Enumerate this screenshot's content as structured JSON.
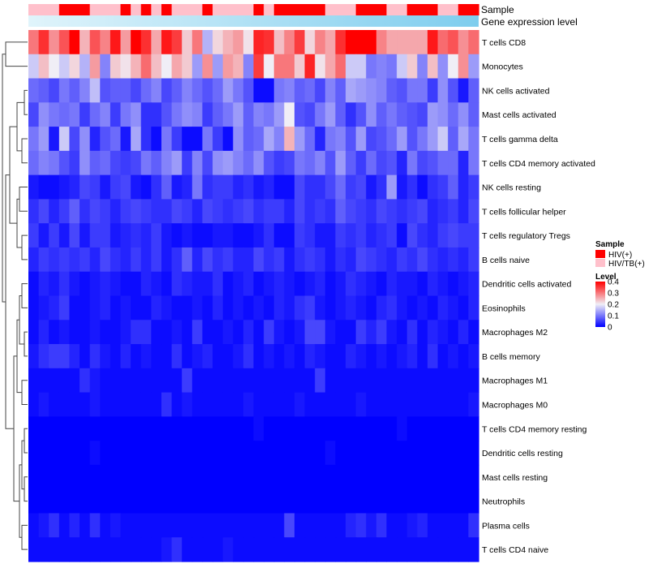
{
  "chart_data": {
    "type": "heatmap",
    "title": "",
    "colors": {
      "low": "#0000ff",
      "mid": "#f0eef6",
      "high": "#ff0000",
      "sample_hiv": "#ff0000",
      "sample_hivtb": "#ffc0cb",
      "expr_low": "#e0f4fb",
      "expr_high": "#7ecdee"
    },
    "annotations": {
      "sample_label": "Sample",
      "expression_label": "Gene expression level",
      "sample_groups": [
        "HIV/TB(+)",
        "HIV/TB(+)",
        "HIV/TB(+)",
        "HIV(+)",
        "HIV(+)",
        "HIV(+)",
        "HIV/TB(+)",
        "HIV/TB(+)",
        "HIV/TB(+)",
        "HIV(+)",
        "HIV/TB(+)",
        "HIV(+)",
        "HIV/TB(+)",
        "HIV(+)",
        "HIV/TB(+)",
        "HIV/TB(+)",
        "HIV/TB(+)",
        "HIV(+)",
        "HIV/TB(+)",
        "HIV/TB(+)",
        "HIV/TB(+)",
        "HIV/TB(+)",
        "HIV(+)",
        "HIV/TB(+)",
        "HIV(+)",
        "HIV(+)",
        "HIV(+)",
        "HIV(+)",
        "HIV(+)",
        "HIV/TB(+)",
        "HIV/TB(+)",
        "HIV/TB(+)",
        "HIV(+)",
        "HIV(+)",
        "HIV(+)",
        "HIV/TB(+)",
        "HIV/TB(+)",
        "HIV(+)",
        "HIV(+)",
        "HIV(+)",
        "HIV/TB(+)",
        "HIV/TB(+)",
        "HIV(+)",
        "HIV(+)"
      ]
    },
    "rows": [
      "T cells CD8",
      "Monocytes",
      "NK cells activated",
      "Mast cells activated",
      "T cells gamma delta",
      "T cells CD4 memory activated",
      "NK cells resting",
      "T cells follicular helper",
      "T cells regulatory  Tregs",
      "B cells naive",
      "Dendritic cells activated",
      "Eosinophils",
      "Macrophages M2",
      "B cells memory",
      "Macrophages M1",
      "Macrophages M0",
      "T cells CD4 memory resting",
      "Dendritic cells resting",
      "Mast cells resting",
      "Neutrophils",
      "Plasma cells",
      "T cells CD4 naive"
    ],
    "values": [
      [
        0.3,
        0.36,
        0.28,
        0.33,
        0.4,
        0.25,
        0.33,
        0.29,
        0.38,
        0.27,
        0.4,
        0.36,
        0.26,
        0.38,
        0.35,
        0.23,
        0.3,
        0.15,
        0.22,
        0.25,
        0.27,
        0.21,
        0.37,
        0.36,
        0.24,
        0.29,
        0.35,
        0.22,
        0.29,
        0.26,
        0.36,
        0.4,
        0.4,
        0.4,
        0.29,
        0.26,
        0.26,
        0.26,
        0.26,
        0.38,
        0.31,
        0.33,
        0.28,
        0.31
      ],
      [
        0.17,
        0.24,
        0.2,
        0.17,
        0.22,
        0.15,
        0.27,
        0.11,
        0.23,
        0.21,
        0.25,
        0.31,
        0.24,
        0.2,
        0.26,
        0.23,
        0.13,
        0.28,
        0.13,
        0.27,
        0.25,
        0.11,
        0.35,
        0.2,
        0.3,
        0.3,
        0.23,
        0.37,
        0.21,
        0.26,
        0.31,
        0.17,
        0.17,
        0.1,
        0.11,
        0.1,
        0.17,
        0.23,
        0.11,
        0.24,
        0.12,
        0.2,
        0.28,
        0.13
      ],
      [
        0.09,
        0.08,
        0.06,
        0.1,
        0.08,
        0.11,
        0.16,
        0.07,
        0.08,
        0.08,
        0.06,
        0.09,
        0.11,
        0.06,
        0.08,
        0.11,
        0.09,
        0.07,
        0.09,
        0.13,
        0.1,
        0.07,
        0.01,
        0.01,
        0.1,
        0.11,
        0.08,
        0.09,
        0.06,
        0.11,
        0.08,
        0.14,
        0.13,
        0.12,
        0.11,
        0.08,
        0.07,
        0.1,
        0.1,
        0.05,
        0.12,
        0.07,
        0.02,
        0.08
      ],
      [
        0.06,
        0.12,
        0.1,
        0.09,
        0.1,
        0.05,
        0.09,
        0.11,
        0.05,
        0.1,
        0.12,
        0.04,
        0.04,
        0.07,
        0.1,
        0.12,
        0.11,
        0.05,
        0.08,
        0.1,
        0.13,
        0.08,
        0.11,
        0.1,
        0.13,
        0.2,
        0.07,
        0.06,
        0.1,
        0.13,
        0.08,
        0.04,
        0.07,
        0.12,
        0.08,
        0.1,
        0.08,
        0.07,
        0.06,
        0.13,
        0.12,
        0.09,
        0.12,
        0.08
      ],
      [
        0.1,
        0.13,
        0.02,
        0.17,
        0.06,
        0.12,
        0.03,
        0.07,
        0.09,
        0.02,
        0.14,
        0.04,
        0.01,
        0.1,
        0.05,
        0.01,
        0.01,
        0.1,
        0.05,
        0.01,
        0.12,
        0.08,
        0.09,
        0.14,
        0.11,
        0.25,
        0.13,
        0.09,
        0.03,
        0.1,
        0.11,
        0.07,
        0.13,
        0.06,
        0.07,
        0.09,
        0.13,
        0.07,
        0.1,
        0.13,
        0.17,
        0.08,
        0.14,
        0.1
      ],
      [
        0.09,
        0.11,
        0.1,
        0.07,
        0.05,
        0.12,
        0.08,
        0.09,
        0.06,
        0.05,
        0.06,
        0.1,
        0.08,
        0.11,
        0.13,
        0.05,
        0.11,
        0.06,
        0.12,
        0.13,
        0.11,
        0.09,
        0.12,
        0.07,
        0.05,
        0.06,
        0.1,
        0.09,
        0.11,
        0.07,
        0.13,
        0.08,
        0.05,
        0.09,
        0.06,
        0.07,
        0.03,
        0.1,
        0.06,
        0.07,
        0.09,
        0.09,
        0.03,
        0.1
      ],
      [
        0.02,
        0.01,
        0.01,
        0.02,
        0.03,
        0.06,
        0.05,
        0.02,
        0.05,
        0.06,
        0.02,
        0.01,
        0.04,
        0.08,
        0.02,
        0.03,
        0.1,
        0.04,
        0.05,
        0.05,
        0.03,
        0.04,
        0.02,
        0.03,
        0.01,
        0.01,
        0.06,
        0.04,
        0.04,
        0.06,
        0.09,
        0.05,
        0.06,
        0.02,
        0.04,
        0.13,
        0.02,
        0.04,
        0.01,
        0.04,
        0.05,
        0.08,
        0.03,
        0.05
      ],
      [
        0.04,
        0.06,
        0.03,
        0.05,
        0.08,
        0.04,
        0.06,
        0.05,
        0.03,
        0.05,
        0.06,
        0.05,
        0.04,
        0.04,
        0.06,
        0.05,
        0.03,
        0.06,
        0.05,
        0.04,
        0.05,
        0.06,
        0.04,
        0.05,
        0.05,
        0.03,
        0.06,
        0.04,
        0.05,
        0.04,
        0.08,
        0.06,
        0.05,
        0.04,
        0.06,
        0.05,
        0.04,
        0.05,
        0.06,
        0.03,
        0.04,
        0.05,
        0.03,
        0.06
      ],
      [
        0.05,
        0.02,
        0.05,
        0.02,
        0.06,
        0.02,
        0.05,
        0.05,
        0.02,
        0.03,
        0.04,
        0.03,
        0.05,
        0.02,
        0.01,
        0.02,
        0.01,
        0.01,
        0.02,
        0.02,
        0.01,
        0.01,
        0.02,
        0.04,
        0.01,
        0.01,
        0.05,
        0.04,
        0.02,
        0.02,
        0.05,
        0.04,
        0.05,
        0.03,
        0.04,
        0.05,
        0.01,
        0.06,
        0.04,
        0.03,
        0.05,
        0.06,
        0.05,
        0.05
      ],
      [
        0.03,
        0.05,
        0.04,
        0.05,
        0.04,
        0.05,
        0.03,
        0.06,
        0.04,
        0.03,
        0.05,
        0.03,
        0.05,
        0.02,
        0.04,
        0.08,
        0.03,
        0.06,
        0.04,
        0.05,
        0.03,
        0.03,
        0.06,
        0.04,
        0.05,
        0.02,
        0.04,
        0.05,
        0.04,
        0.02,
        0.04,
        0.03,
        0.06,
        0.05,
        0.04,
        0.03,
        0.05,
        0.04,
        0.06,
        0.04,
        0.03,
        0.04,
        0.03,
        0.05
      ],
      [
        0.01,
        0.03,
        0.02,
        0.04,
        0.02,
        0.01,
        0.02,
        0.03,
        0.02,
        0.01,
        0.01,
        0.03,
        0.02,
        0.01,
        0.04,
        0.03,
        0.02,
        0.02,
        0.04,
        0.01,
        0.02,
        0.03,
        0.01,
        0.02,
        0.03,
        0.02,
        0.01,
        0.02,
        0.03,
        0.01,
        0.02,
        0.04,
        0.03,
        0.02,
        0.01,
        0.03,
        0.02,
        0.02,
        0.01,
        0.03,
        0.02,
        0.01,
        0.02,
        0.03
      ],
      [
        0.01,
        0.02,
        0.03,
        0.05,
        0.01,
        0.01,
        0.02,
        0.03,
        0.01,
        0.02,
        0.01,
        0.01,
        0.03,
        0.02,
        0.01,
        0.01,
        0.02,
        0.01,
        0.03,
        0.01,
        0.02,
        0.01,
        0.02,
        0.01,
        0.03,
        0.02,
        0.04,
        0.05,
        0.02,
        0.01,
        0.02,
        0.03,
        0.02,
        0.01,
        0.03,
        0.04,
        0.02,
        0.01,
        0.02,
        0.01,
        0.03,
        0.02,
        0.01,
        0.03
      ],
      [
        0.01,
        0.03,
        0.01,
        0.02,
        0.01,
        0.01,
        0.02,
        0.01,
        0.01,
        0.02,
        0.04,
        0.04,
        0.01,
        0.01,
        0.02,
        0.01,
        0.05,
        0.01,
        0.01,
        0.02,
        0.01,
        0.03,
        0.01,
        0.05,
        0.02,
        0.01,
        0.02,
        0.06,
        0.06,
        0.02,
        0.01,
        0.01,
        0.05,
        0.03,
        0.05,
        0.02,
        0.01,
        0.04,
        0.01,
        0.03,
        0.02,
        0.01,
        0.03,
        0.01
      ],
      [
        0.02,
        0.04,
        0.05,
        0.05,
        0.03,
        0.01,
        0.04,
        0.02,
        0.01,
        0.03,
        0.01,
        0.02,
        0.01,
        0.01,
        0.04,
        0.01,
        0.02,
        0.03,
        0.01,
        0.01,
        0.02,
        0.04,
        0.01,
        0.02,
        0.01,
        0.02,
        0.01,
        0.03,
        0.02,
        0.01,
        0.01,
        0.03,
        0.02,
        0.01,
        0.02,
        0.01,
        0.02,
        0.03,
        0.01,
        0.04,
        0.01,
        0.02,
        0.01,
        0.02
      ],
      [
        0.01,
        0.01,
        0.01,
        0.01,
        0.01,
        0.04,
        0.02,
        0.01,
        0.01,
        0.01,
        0.01,
        0.01,
        0.01,
        0.01,
        0.01,
        0.05,
        0.01,
        0.01,
        0.01,
        0.01,
        0.01,
        0.01,
        0.01,
        0.01,
        0.01,
        0.01,
        0.01,
        0.01,
        0.05,
        0.01,
        0.01,
        0.01,
        0.01,
        0.01,
        0.01,
        0.01,
        0.01,
        0.01,
        0.01,
        0.01,
        0.01,
        0.01,
        0.01,
        0.01
      ],
      [
        0.01,
        0.02,
        0.01,
        0.01,
        0.01,
        0.01,
        0.02,
        0.01,
        0.01,
        0.01,
        0.01,
        0.01,
        0.01,
        0.04,
        0.01,
        0.02,
        0.01,
        0.01,
        0.01,
        0.01,
        0.01,
        0.02,
        0.01,
        0.01,
        0.01,
        0.01,
        0.02,
        0.01,
        0.01,
        0.01,
        0.01,
        0.01,
        0.02,
        0.01,
        0.01,
        0.01,
        0.01,
        0.01,
        0.01,
        0.01,
        0.01,
        0.01,
        0.01,
        0.02
      ],
      [
        0.0,
        0.0,
        0.0,
        0.0,
        0.0,
        0.0,
        0.0,
        0.0,
        0.0,
        0.0,
        0.0,
        0.0,
        0.0,
        0.0,
        0.0,
        0.0,
        0.0,
        0.0,
        0.0,
        0.0,
        0.0,
        0.0,
        0.01,
        0.0,
        0.0,
        0.0,
        0.0,
        0.0,
        0.0,
        0.0,
        0.0,
        0.0,
        0.0,
        0.0,
        0.0,
        0.0,
        0.01,
        0.0,
        0.0,
        0.0,
        0.0,
        0.0,
        0.0,
        0.0
      ],
      [
        0.0,
        0.0,
        0.0,
        0.0,
        0.0,
        0.0,
        0.01,
        0.0,
        0.0,
        0.0,
        0.0,
        0.0,
        0.0,
        0.0,
        0.0,
        0.0,
        0.0,
        0.0,
        0.0,
        0.0,
        0.0,
        0.0,
        0.0,
        0.0,
        0.0,
        0.0,
        0.0,
        0.0,
        0.0,
        0.01,
        0.0,
        0.0,
        0.0,
        0.0,
        0.0,
        0.0,
        0.0,
        0.0,
        0.0,
        0.0,
        0.0,
        0.0,
        0.0,
        0.0
      ],
      [
        0.0,
        0.0,
        0.0,
        0.0,
        0.0,
        0.0,
        0.0,
        0.0,
        0.0,
        0.0,
        0.0,
        0.0,
        0.0,
        0.0,
        0.0,
        0.0,
        0.0,
        0.0,
        0.0,
        0.0,
        0.0,
        0.0,
        0.0,
        0.0,
        0.0,
        0.0,
        0.0,
        0.0,
        0.0,
        0.0,
        0.0,
        0.0,
        0.0,
        0.0,
        0.0,
        0.0,
        0.0,
        0.0,
        0.0,
        0.0,
        0.0,
        0.0,
        0.0,
        0.0
      ],
      [
        0.0,
        0.0,
        0.0,
        0.0,
        0.0,
        0.0,
        0.0,
        0.0,
        0.0,
        0.0,
        0.0,
        0.0,
        0.0,
        0.0,
        0.0,
        0.0,
        0.0,
        0.0,
        0.0,
        0.0,
        0.0,
        0.0,
        0.0,
        0.0,
        0.0,
        0.0,
        0.0,
        0.0,
        0.0,
        0.0,
        0.0,
        0.0,
        0.0,
        0.0,
        0.0,
        0.0,
        0.0,
        0.0,
        0.0,
        0.0,
        0.0,
        0.0,
        0.0,
        0.0
      ],
      [
        0.01,
        0.02,
        0.04,
        0.01,
        0.03,
        0.01,
        0.04,
        0.01,
        0.02,
        0.01,
        0.01,
        0.01,
        0.01,
        0.01,
        0.01,
        0.01,
        0.01,
        0.01,
        0.01,
        0.01,
        0.01,
        0.01,
        0.01,
        0.01,
        0.01,
        0.06,
        0.01,
        0.01,
        0.01,
        0.01,
        0.01,
        0.03,
        0.04,
        0.02,
        0.04,
        0.01,
        0.01,
        0.02,
        0.03,
        0.01,
        0.01,
        0.01,
        0.01,
        0.04
      ],
      [
        0.01,
        0.01,
        0.01,
        0.01,
        0.01,
        0.01,
        0.01,
        0.01,
        0.01,
        0.01,
        0.01,
        0.01,
        0.01,
        0.02,
        0.04,
        0.01,
        0.01,
        0.01,
        0.01,
        0.02,
        0.01,
        0.01,
        0.01,
        0.01,
        0.01,
        0.01,
        0.01,
        0.01,
        0.01,
        0.01,
        0.01,
        0.01,
        0.01,
        0.01,
        0.01,
        0.01,
        0.01,
        0.01,
        0.01,
        0.01,
        0.01,
        0.01,
        0.01,
        0.01
      ]
    ],
    "legend": {
      "sample_title": "Sample",
      "sample_entries": [
        "HIV(+)",
        "HIV/TB(+)"
      ],
      "level_title": "Level",
      "level_range": [
        0,
        0.4
      ],
      "level_ticks": [
        "0.4",
        "0.3",
        "0.2",
        "0.1",
        "0"
      ],
      "level_tick_values": [
        0.4,
        0.3,
        0.2,
        0.1,
        0
      ]
    }
  }
}
